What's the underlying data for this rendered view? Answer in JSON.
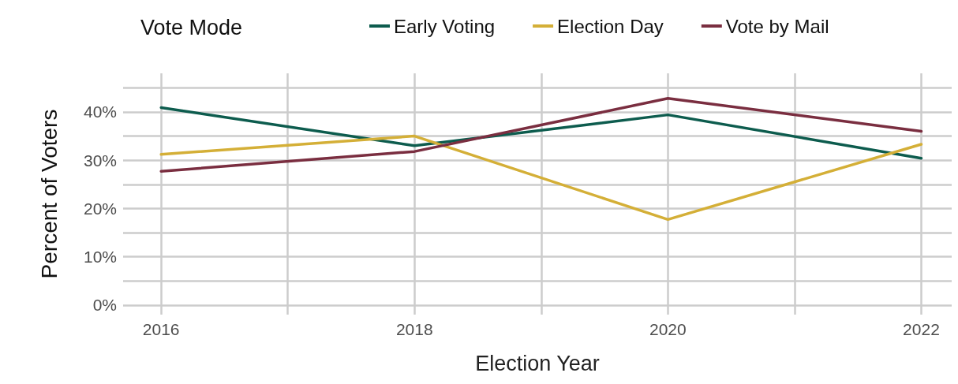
{
  "chart_data": {
    "type": "line",
    "xlabel": "Election Year",
    "ylabel": "Percent of Voters",
    "legend_title": "Vote Mode",
    "legend": "top",
    "grid": true,
    "marker": "none",
    "line_style": "solid",
    "x": [
      2016,
      2018,
      2020,
      2022
    ],
    "xlim": [
      2015.7,
      2022.24
    ],
    "xticks": [
      2016,
      {
        "value": 2017,
        "label": null
      },
      2018,
      {
        "value": 2019,
        "label": null
      },
      2020,
      {
        "value": 2021,
        "label": null
      },
      2022
    ],
    "ylim": [
      -2,
      48
    ],
    "yticks": [
      {
        "value": 0,
        "label": "0%"
      },
      {
        "value": 5,
        "label": null
      },
      {
        "value": 10,
        "label": "10%"
      },
      {
        "value": 15,
        "label": null
      },
      {
        "value": 20,
        "label": "20%"
      },
      {
        "value": 25,
        "label": null
      },
      {
        "value": 30,
        "label": "30%"
      },
      {
        "value": 35,
        "label": null
      },
      {
        "value": 40,
        "label": "40%"
      },
      {
        "value": 45,
        "label": null
      }
    ],
    "series": [
      {
        "name": "Early Voting",
        "color": "#0d5c4e",
        "values": [
          40.9,
          33.0,
          39.4,
          30.4
        ]
      },
      {
        "name": "Election Day",
        "color": "#d4af37",
        "values": [
          31.2,
          35.0,
          17.7,
          33.3
        ]
      },
      {
        "name": "Vote by Mail",
        "color": "#7a2e40",
        "values": [
          27.7,
          31.8,
          42.8,
          36.0
        ]
      }
    ]
  }
}
